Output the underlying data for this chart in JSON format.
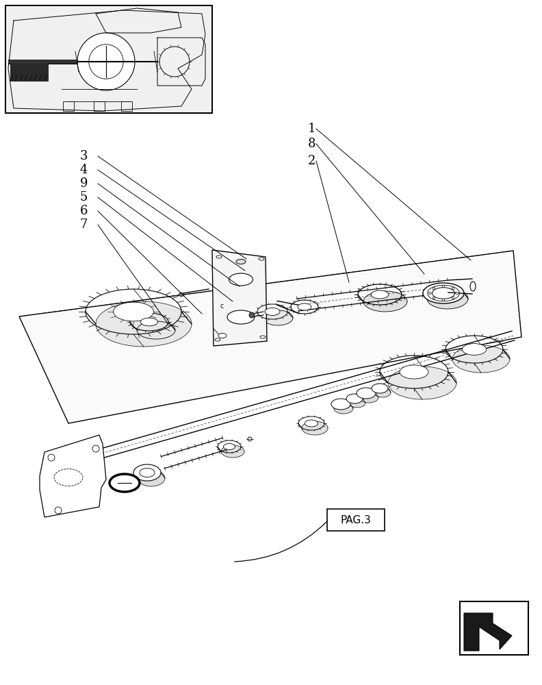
{
  "bg_color": "#ffffff",
  "fig_width": 7.92,
  "fig_height": 10.0,
  "labels": {
    "left_numbers": [
      "3",
      "4",
      "9",
      "5",
      "6",
      "7"
    ],
    "right_numbers": [
      "1",
      "8",
      "2"
    ]
  },
  "pag3_label": "PAG.3"
}
